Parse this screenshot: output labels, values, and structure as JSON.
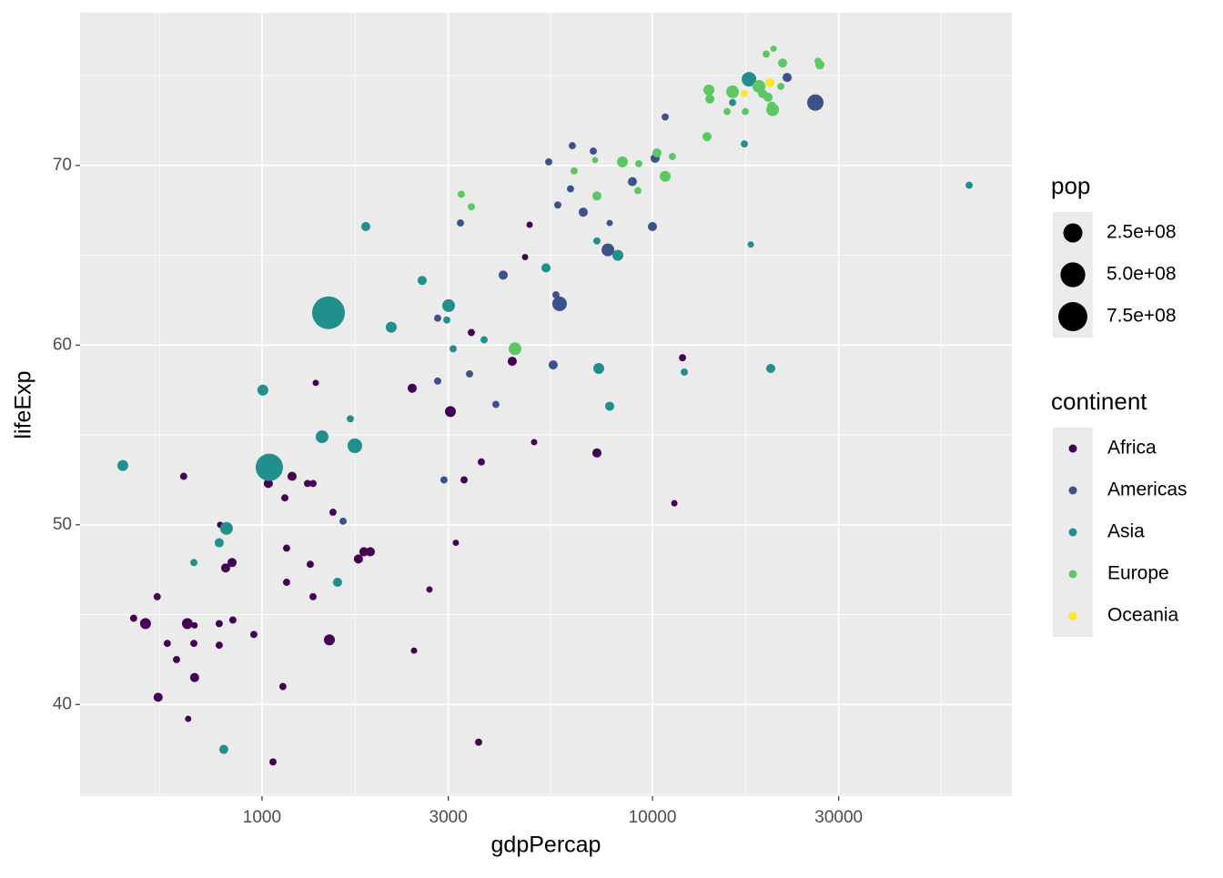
{
  "chart_data": {
    "type": "scatter",
    "x_label": "gdpPercap",
    "y_label": "lifeExp",
    "xlog": true,
    "grid": true,
    "xlim": [
      342,
      83300
    ],
    "ylim": [
      34.9,
      78.5
    ],
    "xticks": [
      1000,
      3000,
      10000,
      30000
    ],
    "yticks": [
      40,
      50,
      60,
      70
    ],
    "size_legend": {
      "title": "pop",
      "breaks": [
        {
          "value": 250000000,
          "label": "2.5e+08"
        },
        {
          "value": 500000000,
          "label": "5.0e+08"
        },
        {
          "value": 750000000,
          "label": "7.5e+08"
        }
      ]
    },
    "color_legend_title": "continent",
    "legend_position": "right",
    "series": [
      {
        "name": "Africa",
        "color": "#440154",
        "x": [
          469,
          503,
          539,
          542,
          572,
          604,
          630,
          644,
          647,
          669,
          672,
          672,
          777,
          777,
          781,
          807,
          838,
          842,
          953,
          1038,
          1067,
          1131,
          1144,
          1156,
          1156,
          1194,
          1308,
          1329,
          1351,
          1351,
          1373,
          1488,
          1520,
          1766,
          1824,
          1894,
          2451,
          2425,
          2685,
          3038,
          3137,
          3293,
          3437,
          3588,
          3646,
          4375,
          4718,
          4846,
          4977,
          7208,
          11380,
          11940
        ],
        "values": [
          44.8,
          44.5,
          46.0,
          40.4,
          43.4,
          42.5,
          52.7,
          44.5,
          39.2,
          43.4,
          44.4,
          41.5,
          43.3,
          44.5,
          50.0,
          47.6,
          47.9,
          44.7,
          43.9,
          52.3,
          36.8,
          41.0,
          51.5,
          48.7,
          46.8,
          52.7,
          52.3,
          47.8,
          52.3,
          46.0,
          57.9,
          43.6,
          50.7,
          48.1,
          48.5,
          48.5,
          43.0,
          57.6,
          46.4,
          56.3,
          49.0,
          52.5,
          60.7,
          37.9,
          53.5,
          59.1,
          64.9,
          66.7,
          54.6,
          54.0,
          51.2,
          59.3
        ],
        "sizes": [
          4000000,
          40000000,
          4000000,
          18000000,
          4000000,
          4000000,
          4000000,
          40000000,
          1000000,
          4000000,
          1000000,
          18000000,
          4000000,
          4000000,
          1000000,
          18000000,
          18000000,
          4000000,
          4000000,
          18000000,
          4000000,
          4000000,
          4000000,
          4000000,
          4000000,
          18000000,
          4000000,
          4000000,
          4000000,
          4000000,
          1000000,
          40000000,
          4000000,
          18000000,
          18000000,
          18000000,
          1000000,
          18000000,
          1000000,
          40000000,
          1000000,
          4000000,
          4000000,
          4000000,
          4000000,
          18000000,
          1000000,
          1000000,
          1000000,
          18000000,
          1000000,
          4000000
        ]
      },
      {
        "name": "Americas",
        "color": "#3B528B",
        "x": [
          1613,
          2818,
          2818,
          2925,
          3223,
          3401,
          3972,
          4147,
          5424,
          5570,
          5660,
          5722,
          5783,
          6168,
          6234,
          6650,
          7056,
          7690,
          7770,
          8886,
          10000,
          10160,
          10780,
          22130,
          26140
        ],
        "values": [
          50.2,
          61.5,
          58.0,
          52.5,
          66.8,
          58.4,
          56.7,
          63.9,
          70.2,
          58.9,
          62.8,
          67.8,
          62.3,
          68.7,
          71.1,
          67.4,
          70.8,
          65.3,
          66.8,
          69.1,
          66.6,
          70.4,
          72.7,
          74.9,
          73.5
        ],
        "sizes": [
          4000000,
          4000000,
          4000000,
          4000000,
          4000000,
          4000000,
          4000000,
          18000000,
          4000000,
          18000000,
          4000000,
          4000000,
          111000000,
          4000000,
          4000000,
          18000000,
          4000000,
          71000000,
          1000000,
          18000000,
          18000000,
          18000000,
          4000000,
          18000000,
          160000000
        ]
      },
      {
        "name": "Asia",
        "color": "#21908C",
        "x": [
          440,
          669,
          777,
          798,
          811,
          1005,
          1044,
          1425,
          1480,
          1561,
          1683,
          1729,
          1844,
          2143,
          2572,
          2973,
          3006,
          3087,
          3706,
          5338,
          7208,
          7286,
          7770,
          8155,
          12070,
          16040,
          17200,
          17670,
          17860,
          20090,
          64740
        ],
        "values": [
          53.3,
          47.9,
          49.0,
          37.5,
          49.8,
          57.5,
          53.2,
          54.9,
          61.8,
          46.8,
          55.9,
          54.4,
          66.6,
          61.0,
          63.6,
          61.4,
          62.2,
          59.8,
          60.3,
          64.3,
          65.8,
          58.7,
          56.6,
          65.0,
          58.5,
          73.5,
          71.2,
          74.8,
          65.6,
          58.7,
          68.9
        ],
        "sizes": [
          40000000,
          4000000,
          18000000,
          18000000,
          71000000,
          40000000,
          640000000,
          71000000,
          1000000000,
          18000000,
          4000000,
          111000000,
          18000000,
          40000000,
          18000000,
          4000000,
          71000000,
          4000000,
          4000000,
          18000000,
          4000000,
          40000000,
          18000000,
          40000000,
          4000000,
          4000000,
          4000000,
          111000000,
          1000000,
          18000000,
          4000000
        ]
      },
      {
        "name": "Europe",
        "color": "#5DC863",
        "x": [
          3240,
          3437,
          4446,
          6301,
          7131,
          7208,
          8378,
          9227,
          9178,
          10270,
          10780,
          11250,
          13800,
          13950,
          14030,
          15530,
          16040,
          17290,
          18740,
          19150,
          19560,
          19770,
          20210,
          20320,
          20420,
          21320,
          21540,
          26560,
          26850
        ],
        "values": [
          68.4,
          67.7,
          59.8,
          69.7,
          70.3,
          68.3,
          70.2,
          70.1,
          68.6,
          70.7,
          69.4,
          70.5,
          71.6,
          74.2,
          73.7,
          73.0,
          74.1,
          73.0,
          74.4,
          74.0,
          76.2,
          73.8,
          73.3,
          73.1,
          76.5,
          74.4,
          75.7,
          75.8,
          75.6
        ],
        "sizes": [
          4000000,
          4000000,
          71000000,
          4000000,
          1000000,
          18000000,
          40000000,
          4000000,
          4000000,
          18000000,
          40000000,
          4000000,
          18000000,
          40000000,
          18000000,
          4000000,
          71000000,
          4000000,
          71000000,
          18000000,
          4000000,
          18000000,
          18000000,
          71000000,
          1000000,
          4000000,
          18000000,
          4000000,
          18000000
        ]
      },
      {
        "name": "Oceania",
        "color": "#FDE725",
        "x": [
          17200,
          19980
        ],
        "values": [
          74.0,
          74.6
        ],
        "sizes": [
          4000000,
          18000000
        ]
      }
    ]
  }
}
